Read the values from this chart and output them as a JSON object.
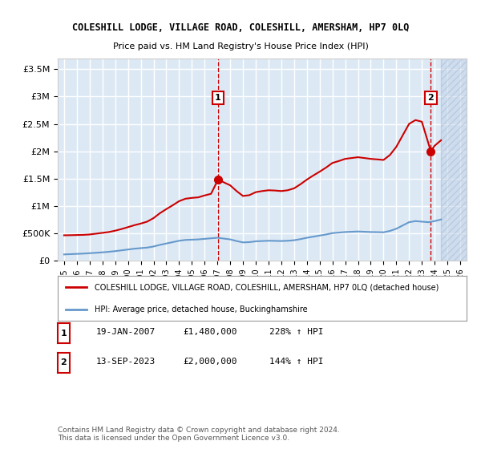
{
  "title": "COLESHILL LODGE, VILLAGE ROAD, COLESHILL, AMERSHAM, HP7 0LQ",
  "subtitle": "Price paid vs. HM Land Registry's House Price Index (HPI)",
  "bg_color": "#dce9f5",
  "plot_bg_color": "#dce9f5",
  "hatch_color": "#c0d0e8",
  "grid_color": "#ffffff",
  "red_line_color": "#cc0000",
  "blue_line_color": "#6699cc",
  "dashed_line_color": "#cc0000",
  "ylim": [
    0,
    3700000
  ],
  "yticks": [
    0,
    500000,
    1000000,
    1500000,
    2000000,
    2500000,
    3000000,
    3500000
  ],
  "ytick_labels": [
    "£0",
    "£500K",
    "£1M",
    "£1.5M",
    "£2M",
    "£2.5M",
    "£3M",
    "£3.5M"
  ],
  "xlim_start": 1994.5,
  "xlim_end": 2026.5,
  "xtick_years": [
    1995,
    1996,
    1997,
    1998,
    1999,
    2000,
    2001,
    2002,
    2003,
    2004,
    2005,
    2006,
    2007,
    2008,
    2009,
    2010,
    2011,
    2012,
    2013,
    2014,
    2015,
    2016,
    2017,
    2018,
    2019,
    2020,
    2021,
    2022,
    2023,
    2024,
    2025,
    2026
  ],
  "event1_x": 2007.05,
  "event1_y": 1480000,
  "event1_label": "1",
  "event2_x": 2023.7,
  "event2_y": 2000000,
  "event2_label": "2",
  "legend_line1": "COLESHILL LODGE, VILLAGE ROAD, COLESHILL, AMERSHAM, HP7 0LQ (detached house)",
  "legend_line2": "HPI: Average price, detached house, Buckinghamshire",
  "table_row1": [
    "1",
    "19-JAN-2007",
    "£1,480,000",
    "228% ↑ HPI"
  ],
  "table_row2": [
    "2",
    "13-SEP-2023",
    "£2,000,000",
    "144% ↑ HPI"
  ],
  "footer": "Contains HM Land Registry data © Crown copyright and database right 2024.\nThis data is licensed under the Open Government Licence v3.0.",
  "hpi_data_x": [
    1995.0,
    1995.5,
    1996.0,
    1996.5,
    1997.0,
    1997.5,
    1998.0,
    1998.5,
    1999.0,
    1999.5,
    2000.0,
    2000.5,
    2001.0,
    2001.5,
    2002.0,
    2002.5,
    2003.0,
    2003.5,
    2004.0,
    2004.5,
    2005.0,
    2005.5,
    2006.0,
    2006.5,
    2007.0,
    2007.5,
    2008.0,
    2008.5,
    2009.0,
    2009.5,
    2010.0,
    2010.5,
    2011.0,
    2011.5,
    2012.0,
    2012.5,
    2013.0,
    2013.5,
    2014.0,
    2014.5,
    2015.0,
    2015.5,
    2016.0,
    2016.5,
    2017.0,
    2017.5,
    2018.0,
    2018.5,
    2019.0,
    2019.5,
    2020.0,
    2020.5,
    2021.0,
    2021.5,
    2022.0,
    2022.5,
    2023.0,
    2023.5,
    2024.0,
    2024.5
  ],
  "hpi_data_y": [
    110000,
    115000,
    120000,
    125000,
    132000,
    140000,
    148000,
    158000,
    170000,
    185000,
    200000,
    215000,
    225000,
    235000,
    255000,
    285000,
    310000,
    335000,
    360000,
    375000,
    380000,
    385000,
    395000,
    405000,
    415000,
    400000,
    385000,
    355000,
    330000,
    335000,
    350000,
    355000,
    360000,
    358000,
    355000,
    360000,
    370000,
    390000,
    415000,
    435000,
    455000,
    475000,
    500000,
    510000,
    520000,
    525000,
    530000,
    525000,
    520000,
    518000,
    515000,
    540000,
    580000,
    640000,
    700000,
    720000,
    710000,
    700000,
    720000,
    750000
  ],
  "price_data_x": [
    1995.0,
    1995.5,
    1996.0,
    1996.5,
    1997.0,
    1997.5,
    1998.0,
    1998.5,
    1999.0,
    1999.5,
    2000.0,
    2000.5,
    2001.0,
    2001.5,
    2002.0,
    2002.5,
    2003.0,
    2003.5,
    2004.0,
    2004.5,
    2005.0,
    2005.5,
    2006.0,
    2006.5,
    2007.05,
    2007.5,
    2008.0,
    2008.5,
    2009.0,
    2009.5,
    2010.0,
    2010.5,
    2011.0,
    2011.5,
    2012.0,
    2012.5,
    2013.0,
    2013.5,
    2014.0,
    2014.5,
    2015.0,
    2015.5,
    2016.0,
    2016.5,
    2017.0,
    2017.5,
    2018.0,
    2018.5,
    2019.0,
    2019.5,
    2020.0,
    2020.5,
    2021.0,
    2021.5,
    2022.0,
    2022.5,
    2023.0,
    2023.7,
    2024.0,
    2024.5
  ],
  "price_data_y": [
    460000,
    462000,
    465000,
    468000,
    475000,
    490000,
    505000,
    520000,
    545000,
    575000,
    610000,
    645000,
    675000,
    710000,
    775000,
    865000,
    940000,
    1010000,
    1085000,
    1130000,
    1145000,
    1155000,
    1190000,
    1220000,
    1480000,
    1430000,
    1375000,
    1270000,
    1180000,
    1195000,
    1250000,
    1270000,
    1285000,
    1280000,
    1270000,
    1285000,
    1320000,
    1395000,
    1480000,
    1555000,
    1625000,
    1700000,
    1785000,
    1820000,
    1860000,
    1875000,
    1890000,
    1875000,
    1860000,
    1850000,
    1840000,
    1930000,
    2080000,
    2290000,
    2500000,
    2570000,
    2540000,
    2000000,
    2100000,
    2200000
  ]
}
